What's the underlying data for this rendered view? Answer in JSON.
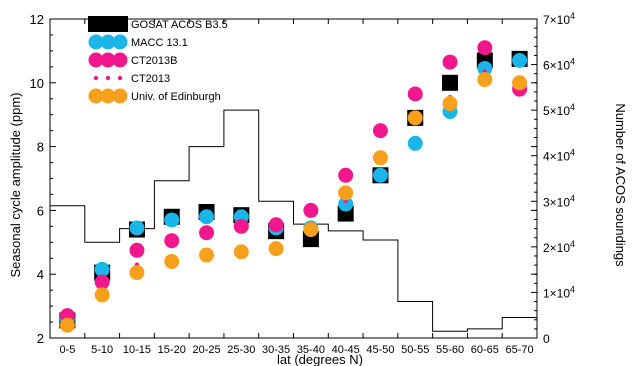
{
  "chart_data": {
    "type": "scatter",
    "categories": [
      "0-5",
      "5-10",
      "10-15",
      "15-20",
      "20-25",
      "25-30",
      "30-35",
      "35-40",
      "40-45",
      "45-50",
      "50-55",
      "55-60",
      "60-65",
      "65-70"
    ],
    "xlabel": "lat (degrees N)",
    "ylabel": "Seasonal cycle amplitude (ppm)",
    "ylabel_right": "Number of ACOS soundings",
    "ylim": [
      2,
      12
    ],
    "y_ticks": [
      "2",
      "4",
      "6",
      "8",
      "10",
      "12"
    ],
    "y2lim": [
      0,
      70000
    ],
    "y2_ticks": [
      {
        "mantissa": "0",
        "exp": ""
      },
      {
        "mantissa": "1×10",
        "exp": "4"
      },
      {
        "mantissa": "2×10",
        "exp": "4"
      },
      {
        "mantissa": "3×10",
        "exp": "4"
      },
      {
        "mantissa": "4×10",
        "exp": "4"
      },
      {
        "mantissa": "5×10",
        "exp": "4"
      },
      {
        "mantissa": "6×10",
        "exp": "4"
      },
      {
        "mantissa": "7×10",
        "exp": "4"
      }
    ],
    "legend_position": "top-left",
    "series": [
      {
        "name": "GOSAT ACOS B3.5",
        "color": "#000000",
        "marker": "square",
        "values": [
          2.55,
          4.05,
          5.4,
          5.8,
          5.95,
          5.85,
          5.35,
          5.1,
          5.9,
          7.1,
          8.9,
          10.0,
          10.7,
          10.75
        ]
      },
      {
        "name": "MACC 13.1",
        "color": "#1ab6ea",
        "marker": "circle-large",
        "values": [
          2.6,
          4.15,
          5.45,
          5.7,
          5.8,
          5.8,
          5.45,
          5.45,
          6.2,
          7.1,
          8.1,
          9.1,
          10.45,
          10.7
        ]
      },
      {
        "name": "CT2013B",
        "color": "#f0188c",
        "marker": "circle-large",
        "values": [
          2.7,
          3.75,
          4.75,
          5.05,
          5.3,
          5.5,
          5.55,
          6.0,
          7.1,
          8.5,
          9.65,
          10.65,
          11.1,
          9.8
        ]
      },
      {
        "name": "CT2013",
        "color": "#f0188c",
        "marker": "circle-small",
        "values": [
          2.55,
          3.35,
          4.3,
          4.35,
          4.6,
          4.7,
          4.8,
          5.3,
          6.3,
          7.65,
          8.85,
          9.55,
          10.35,
          9.75
        ]
      },
      {
        "name": "Univ. of Edinburgh",
        "color": "#f7a01b",
        "marker": "circle-large",
        "values": [
          2.4,
          3.35,
          4.05,
          4.4,
          4.6,
          4.7,
          4.8,
          5.4,
          6.55,
          7.65,
          8.9,
          9.35,
          10.1,
          10.0
        ]
      }
    ],
    "soundings_histogram": {
      "name": "Number of ACOS soundings",
      "color": "#000000",
      "values": [
        29000,
        21000,
        24000,
        34500,
        42000,
        50000,
        30000,
        25000,
        23500,
        21500,
        8000,
        1500,
        2000,
        4500
      ]
    }
  }
}
